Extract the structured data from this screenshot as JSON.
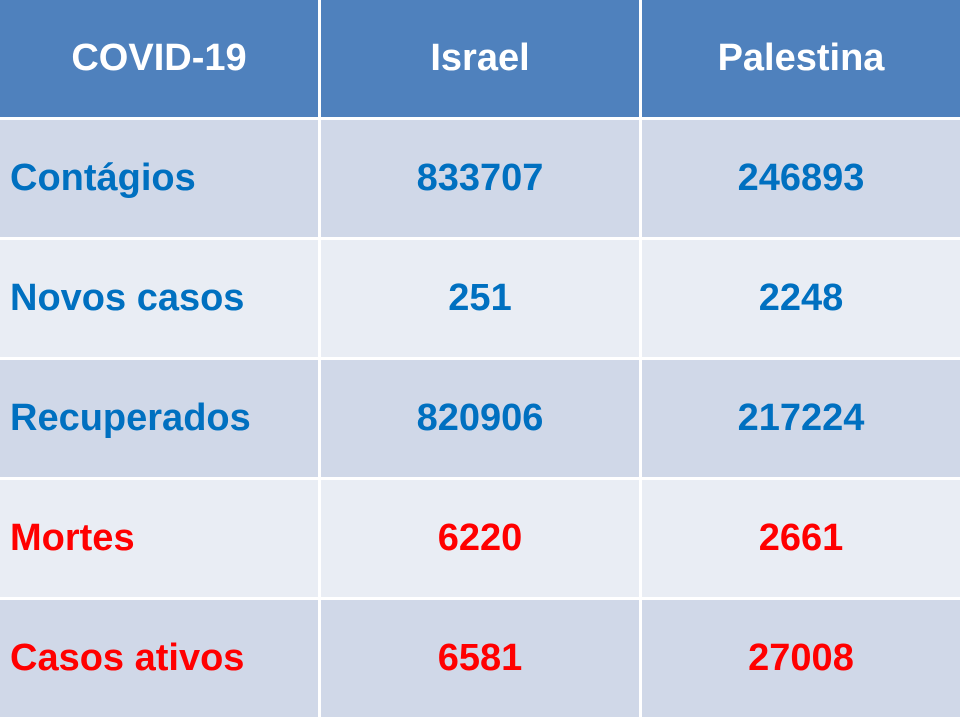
{
  "table": {
    "header": [
      "COVID-19",
      "Israel",
      "Palestina"
    ],
    "rows": [
      [
        "Contágios",
        833707,
        246893
      ],
      [
        "Novos casos",
        251,
        2248
      ],
      [
        "Recuperados",
        820906,
        217224
      ],
      [
        "Mortes",
        6220,
        2661
      ],
      [
        "Casos ativos",
        6581,
        27008
      ]
    ]
  }
}
